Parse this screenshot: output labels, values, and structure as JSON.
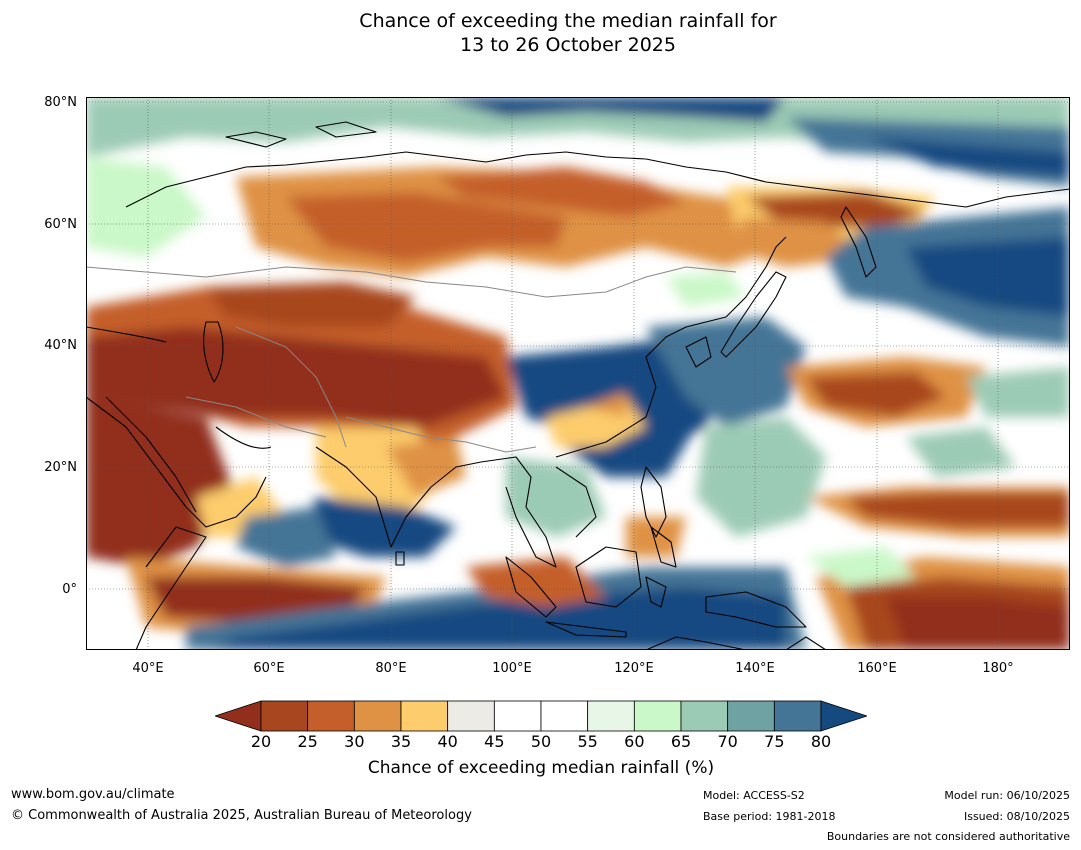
{
  "title": {
    "line1": "Chance of exceeding the median rainfall for",
    "line2": "13 to 26 October 2025"
  },
  "map": {
    "lat_labels": [
      "80°N",
      "60°N",
      "40°N",
      "20°N",
      "0°"
    ],
    "lon_labels": [
      "40°E",
      "60°E",
      "80°E",
      "100°E",
      "120°E",
      "140°E",
      "160°E",
      "180°"
    ],
    "extent": {
      "lon_min": 30,
      "lon_max": 190,
      "lat_min": -10,
      "lat_max": 80
    }
  },
  "colorbar": {
    "label": "Chance of exceeding median rainfall (%)",
    "ticks": [
      "20",
      "25",
      "30",
      "35",
      "40",
      "45",
      "50",
      "55",
      "60",
      "65",
      "70",
      "75",
      "80"
    ],
    "colors": [
      "#922f1c",
      "#a8461f",
      "#c45f2c",
      "#df9244",
      "#fdcc6c",
      "#ecebe6",
      "#ffffff",
      "#ffffff",
      "#e8f6e8",
      "#caf8c8",
      "#9ccbb5",
      "#6fa3a3",
      "#457596",
      "#154a81"
    ]
  },
  "footer": {
    "website": "www.bom.gov.au/climate",
    "copyright": "© Commonwealth of Australia 2025, Australian Bureau of Meteorology",
    "model": "Model: ACCESS-S2",
    "base_period": "Base period: 1981-2018",
    "model_run": "Model run: 06/10/2025",
    "issued": "Issued: 08/10/2025",
    "boundaries": "Boundaries are not considered authoritative"
  }
}
